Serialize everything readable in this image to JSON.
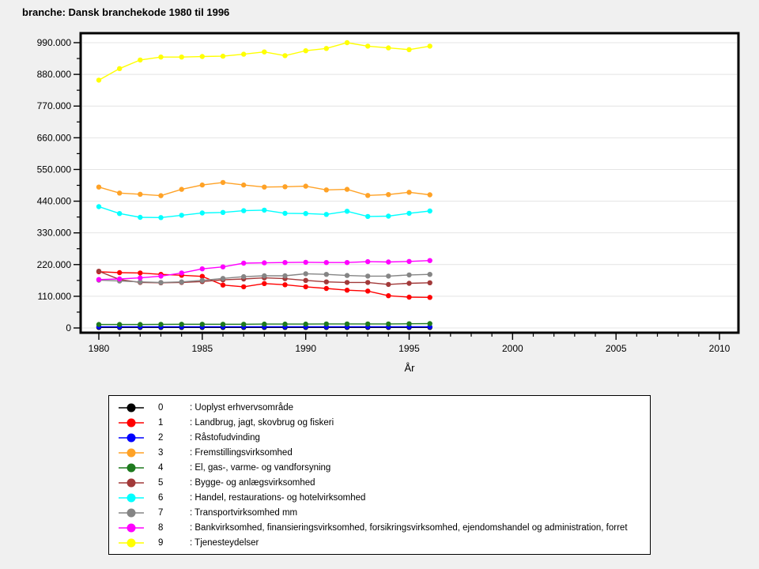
{
  "title": "branche: Dansk branchekode 1980 til 1996",
  "colors": {
    "figure_bg": "#F0F0F0",
    "plot_bg": "#FFFFFF",
    "grid": "#E4E4E4",
    "axis": "#000000"
  },
  "chart_data": {
    "type": "line",
    "title": "branche: Dansk branchekode 1980 til 1996",
    "xlabel": "År",
    "ylabel": "",
    "grid": "horizontal-major-only",
    "legend_position": "bottom-box",
    "xlim": [
      1979,
      2011
    ],
    "ylim": [
      0,
      990000
    ],
    "xtick_labels": [
      "1980",
      "1985",
      "1990",
      "1995",
      "2000",
      "2005",
      "2010"
    ],
    "xticks_major": [
      1980,
      1985,
      1990,
      1995,
      2000,
      2005,
      2010
    ],
    "xtick_minor_step": 1,
    "ytick_labels": [
      "0",
      "110.000",
      "220.000",
      "330.000",
      "440.000",
      "550.000",
      "660.000",
      "770.000",
      "880.000",
      "990.000"
    ],
    "yticks_major": [
      0,
      110000,
      220000,
      330000,
      440000,
      550000,
      660000,
      770000,
      880000,
      990000
    ],
    "ytick_minor_step": 55000,
    "x": [
      1980,
      1981,
      1982,
      1983,
      1984,
      1985,
      1986,
      1987,
      1988,
      1989,
      1990,
      1991,
      1992,
      1993,
      1994,
      1995,
      1996
    ],
    "series": [
      {
        "key": "0",
        "label": ": Uoplyst erhvervsområde",
        "name": "Uoplyst erhvervsområde",
        "color": "#000000",
        "values": [
          2000,
          2000,
          2000,
          2000,
          2000,
          2000,
          2000,
          2000,
          2000,
          2000,
          2000,
          2000,
          2000,
          2000,
          2000,
          2000,
          2000
        ]
      },
      {
        "key": "1",
        "label": ": Landbrug, jagt, skovbrug og fiskeri",
        "name": "Landbrug, jagt, skovbrug og fiskeri",
        "color": "#FF0000",
        "values": [
          195000,
          192000,
          191000,
          186000,
          183000,
          179000,
          149000,
          143000,
          154000,
          150000,
          143000,
          137000,
          131000,
          128000,
          112000,
          107000,
          106000
        ]
      },
      {
        "key": "2",
        "label": ": Råstofudvinding",
        "name": "Råstofudvinding",
        "color": "#0000FF",
        "values": [
          4000,
          4000,
          4000,
          4000,
          4000,
          4000,
          4000,
          4000,
          4000,
          4000,
          4000,
          4000,
          4000,
          4000,
          4000,
          4000,
          4000
        ]
      },
      {
        "key": "3",
        "label": ": Fremstillingsvirksomhed",
        "name": "Fremstillingsvirksomhed",
        "color": "#FFA226",
        "values": [
          489000,
          468000,
          464000,
          459000,
          481000,
          496000,
          505000,
          496000,
          489000,
          490000,
          492000,
          479000,
          481000,
          460000,
          463000,
          471000,
          462000
        ]
      },
      {
        "key": "4",
        "label": ": El, gas-, varme- og vandforsyning",
        "name": "El, gas-, varme- og vandforsyning",
        "color": "#1E7A1E",
        "values": [
          12000,
          12000,
          12000,
          12500,
          13000,
          13000,
          13000,
          13000,
          13500,
          13500,
          13500,
          14000,
          14000,
          14000,
          14000,
          14500,
          15000
        ]
      },
      {
        "key": "5",
        "label": ": Bygge- og anlægsvirksomhed",
        "name": "Bygge- og anlægsvirksomhed",
        "color": "#A23A3A",
        "values": [
          197000,
          168000,
          158000,
          157000,
          158000,
          161000,
          167000,
          170000,
          174000,
          171000,
          165000,
          160000,
          158000,
          158000,
          151000,
          155000,
          157000
        ]
      },
      {
        "key": "6",
        "label": ": Handel, restaurations- og hotelvirksomhed",
        "name": "Handel, restaurations- og hotelvirksomhed",
        "color": "#00FFFF",
        "values": [
          421000,
          397000,
          384000,
          383000,
          391000,
          399000,
          401000,
          407000,
          409000,
          398000,
          397000,
          394000,
          405000,
          387000,
          388000,
          398000,
          406000
        ]
      },
      {
        "key": "7",
        "label": ": Transportvirksomhed mm",
        "name": "Transportvirksomhed mm",
        "color": "#858585",
        "values": [
          166000,
          163000,
          160000,
          158000,
          160000,
          165000,
          172000,
          178000,
          181000,
          181000,
          188000,
          186000,
          182000,
          180000,
          180000,
          184000,
          186000
        ]
      },
      {
        "key": "8",
        "label": ": Bankvirksomhed, finansieringsvirksomhed, forsikringsvirksomhed, ejendomshandel og administration, forret",
        "name": "Bankvirksomhed, finansieringsvirksomhed, forsikringsvirksomhed, ejendomshandel og administration, forret",
        "color": "#FF00FF",
        "values": [
          168000,
          170000,
          174000,
          180000,
          191000,
          205000,
          212000,
          225000,
          226000,
          227000,
          228000,
          227000,
          227000,
          230000,
          229000,
          231000,
          234000
        ]
      },
      {
        "key": "9",
        "label": ": Tjenesteydelser",
        "name": "Tjenesteydelser",
        "color": "#FFFF00",
        "values": [
          860000,
          900000,
          930000,
          940000,
          940000,
          942000,
          943000,
          950000,
          958000,
          945000,
          962000,
          970000,
          990000,
          978000,
          972000,
          966000,
          978000
        ]
      }
    ]
  }
}
